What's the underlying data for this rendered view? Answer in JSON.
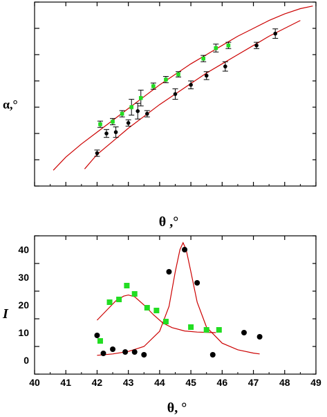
{
  "chart_data": [
    {
      "type": "scatter",
      "title": "",
      "xlabel": "θ ,°",
      "ylabel": "α,°",
      "x_tick_labels": [],
      "y_tick_labels": [],
      "xlim": [
        40,
        49
      ],
      "ylim": [
        0,
        7
      ],
      "grid": false,
      "series": [
        {
          "color": "#000000",
          "marker": "circle-with-error-bars",
          "points": [
            {
              "x": 42.0,
              "y": 1.25,
              "err": 0.12
            },
            {
              "x": 42.3,
              "y": 2.0,
              "err": 0.15
            },
            {
              "x": 42.6,
              "y": 2.05,
              "err": 0.2
            },
            {
              "x": 43.0,
              "y": 2.4,
              "err": 0.12
            },
            {
              "x": 43.3,
              "y": 2.85,
              "err": 0.3
            },
            {
              "x": 43.6,
              "y": 2.75,
              "err": 0.12
            },
            {
              "x": 44.5,
              "y": 3.5,
              "err": 0.2
            },
            {
              "x": 45.0,
              "y": 3.85,
              "err": 0.15
            },
            {
              "x": 45.5,
              "y": 4.2,
              "err": 0.15
            },
            {
              "x": 46.1,
              "y": 4.55,
              "err": 0.18
            },
            {
              "x": 47.1,
              "y": 5.35,
              "err": 0.12
            },
            {
              "x": 47.7,
              "y": 5.8,
              "err": 0.18
            }
          ]
        },
        {
          "color": "#22dd22",
          "marker": "square-with-error-bars",
          "points": [
            {
              "x": 42.1,
              "y": 2.35,
              "err": 0.12
            },
            {
              "x": 42.5,
              "y": 2.45,
              "err": 0.12
            },
            {
              "x": 42.8,
              "y": 2.75,
              "err": 0.12
            },
            {
              "x": 43.1,
              "y": 3.0,
              "err": 0.3
            },
            {
              "x": 43.4,
              "y": 3.35,
              "err": 0.3
            },
            {
              "x": 43.8,
              "y": 3.8,
              "err": 0.12
            },
            {
              "x": 44.2,
              "y": 4.05,
              "err": 0.12
            },
            {
              "x": 44.6,
              "y": 4.25,
              "err": 0.1
            },
            {
              "x": 45.4,
              "y": 4.85,
              "err": 0.12
            },
            {
              "x": 45.8,
              "y": 5.25,
              "err": 0.15
            },
            {
              "x": 46.2,
              "y": 5.35,
              "err": 0.12
            }
          ]
        }
      ],
      "curves": [
        {
          "color": "#cc0000",
          "points": [
            {
              "x": 40.6,
              "y": 0.6
            },
            {
              "x": 41.0,
              "y": 1.1
            },
            {
              "x": 41.5,
              "y": 1.6
            },
            {
              "x": 42.0,
              "y": 2.05
            },
            {
              "x": 42.5,
              "y": 2.5
            },
            {
              "x": 43.0,
              "y": 2.95
            },
            {
              "x": 43.5,
              "y": 3.4
            },
            {
              "x": 44.0,
              "y": 3.85
            },
            {
              "x": 44.5,
              "y": 4.25
            },
            {
              "x": 45.0,
              "y": 4.65
            },
            {
              "x": 45.5,
              "y": 5.0
            },
            {
              "x": 46.0,
              "y": 5.35
            },
            {
              "x": 46.5,
              "y": 5.7
            },
            {
              "x": 47.0,
              "y": 6.0
            },
            {
              "x": 47.5,
              "y": 6.3
            },
            {
              "x": 48.0,
              "y": 6.55
            },
            {
              "x": 48.5,
              "y": 6.75
            },
            {
              "x": 48.9,
              "y": 6.85
            }
          ]
        },
        {
          "color": "#cc0000",
          "points": [
            {
              "x": 41.6,
              "y": 0.65
            },
            {
              "x": 42.0,
              "y": 1.2
            },
            {
              "x": 42.5,
              "y": 1.7
            },
            {
              "x": 43.0,
              "y": 2.2
            },
            {
              "x": 43.5,
              "y": 2.65
            },
            {
              "x": 44.0,
              "y": 3.1
            },
            {
              "x": 44.5,
              "y": 3.5
            },
            {
              "x": 45.0,
              "y": 3.9
            },
            {
              "x": 45.5,
              "y": 4.3
            },
            {
              "x": 46.0,
              "y": 4.65
            },
            {
              "x": 46.5,
              "y": 5.0
            },
            {
              "x": 47.0,
              "y": 5.35
            },
            {
              "x": 47.5,
              "y": 5.7
            },
            {
              "x": 48.0,
              "y": 6.0
            },
            {
              "x": 48.5,
              "y": 6.3
            }
          ]
        }
      ]
    },
    {
      "type": "scatter",
      "title": "",
      "xlabel": "θ, °",
      "ylabel": "I",
      "x_tick_labels": [
        "40",
        "41",
        "42",
        "43",
        "44",
        "45",
        "46",
        "47",
        "48",
        "49"
      ],
      "y_tick_labels": [
        "0",
        "10",
        "20",
        "30",
        "40"
      ],
      "xlim": [
        40,
        49
      ],
      "ylim": [
        -5,
        45
      ],
      "grid": false,
      "series": [
        {
          "color": "#000000",
          "marker": "circle",
          "points": [
            {
              "x": 42.0,
              "y": 9
            },
            {
              "x": 42.2,
              "y": 2.5
            },
            {
              "x": 42.5,
              "y": 4
            },
            {
              "x": 42.9,
              "y": 3
            },
            {
              "x": 43.2,
              "y": 3
            },
            {
              "x": 43.5,
              "y": 2
            },
            {
              "x": 44.3,
              "y": 32
            },
            {
              "x": 44.8,
              "y": 40
            },
            {
              "x": 45.2,
              "y": 28
            },
            {
              "x": 45.7,
              "y": 2
            },
            {
              "x": 46.7,
              "y": 10
            },
            {
              "x": 47.2,
              "y": 8.5
            }
          ]
        },
        {
          "color": "#22dd22",
          "marker": "square",
          "points": [
            {
              "x": 42.1,
              "y": 7
            },
            {
              "x": 42.4,
              "y": 21
            },
            {
              "x": 42.7,
              "y": 22
            },
            {
              "x": 42.95,
              "y": 27
            },
            {
              "x": 43.2,
              "y": 24
            },
            {
              "x": 43.6,
              "y": 19
            },
            {
              "x": 43.9,
              "y": 18
            },
            {
              "x": 44.2,
              "y": 14
            },
            {
              "x": 45.0,
              "y": 12
            },
            {
              "x": 45.5,
              "y": 11
            },
            {
              "x": 45.9,
              "y": 11
            }
          ]
        }
      ],
      "curves": [
        {
          "color": "#cc0000",
          "points": [
            {
              "x": 42.0,
              "y": 1.8
            },
            {
              "x": 42.5,
              "y": 2.3
            },
            {
              "x": 43.0,
              "y": 3.2
            },
            {
              "x": 43.5,
              "y": 5.0
            },
            {
              "x": 44.0,
              "y": 10.5
            },
            {
              "x": 44.3,
              "y": 19.5
            },
            {
              "x": 44.5,
              "y": 32
            },
            {
              "x": 44.65,
              "y": 40
            },
            {
              "x": 44.75,
              "y": 42.5
            },
            {
              "x": 44.85,
              "y": 40
            },
            {
              "x": 45.0,
              "y": 32
            },
            {
              "x": 45.2,
              "y": 21
            },
            {
              "x": 45.5,
              "y": 12
            },
            {
              "x": 46.0,
              "y": 6.2
            },
            {
              "x": 46.5,
              "y": 3.8
            },
            {
              "x": 47.0,
              "y": 2.6
            },
            {
              "x": 47.2,
              "y": 2.3
            }
          ]
        },
        {
          "color": "#cc0000",
          "points": [
            {
              "x": 42.0,
              "y": 14.5
            },
            {
              "x": 42.3,
              "y": 18
            },
            {
              "x": 42.6,
              "y": 21.5
            },
            {
              "x": 42.85,
              "y": 23.2
            },
            {
              "x": 43.0,
              "y": 23.6
            },
            {
              "x": 43.2,
              "y": 23
            },
            {
              "x": 43.5,
              "y": 20
            },
            {
              "x": 43.8,
              "y": 16.5
            },
            {
              "x": 44.1,
              "y": 13.5
            },
            {
              "x": 44.4,
              "y": 11.8
            },
            {
              "x": 44.8,
              "y": 10.6
            },
            {
              "x": 45.2,
              "y": 10.2
            },
            {
              "x": 45.5,
              "y": 10.1
            },
            {
              "x": 45.8,
              "y": 10.0
            }
          ]
        }
      ]
    }
  ]
}
